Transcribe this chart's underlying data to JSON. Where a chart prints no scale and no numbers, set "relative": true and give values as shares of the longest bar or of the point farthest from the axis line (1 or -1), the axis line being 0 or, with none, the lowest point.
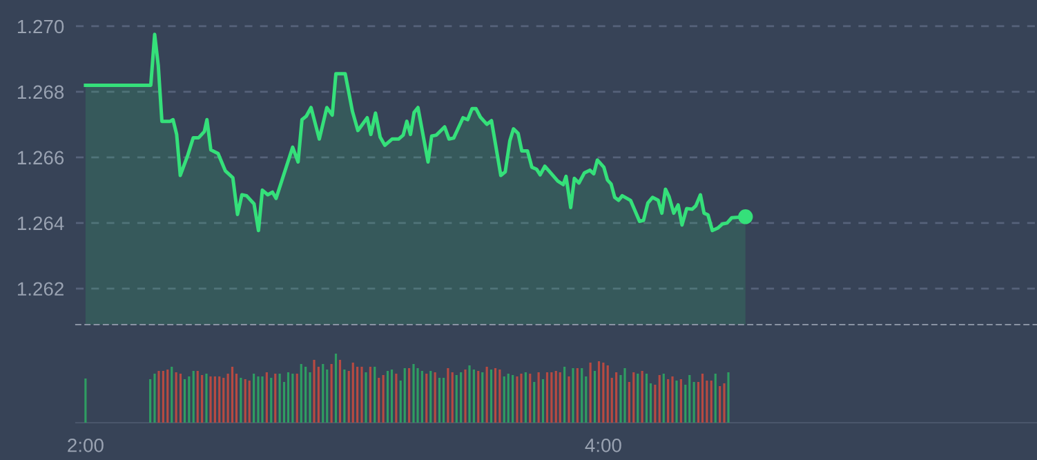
{
  "chart_data": [
    {
      "type": "area",
      "xlim": [
        1.963,
        5.675
      ],
      "ylim": [
        1.2609,
        1.2708
      ],
      "yticks": [
        1.262,
        1.264,
        1.266,
        1.268,
        {
          "value": 1.27,
          "label": "1.270"
        }
      ],
      "grid": "y",
      "tick_labels": "y",
      "series": [
        {
          "color": "#35e07a",
          "x": [
            2.0,
            2.252,
            2.267,
            2.281,
            2.295,
            2.327,
            2.338,
            2.352,
            2.366,
            2.395,
            2.416,
            2.437,
            2.459,
            2.469,
            2.484,
            2.512,
            2.54,
            2.569,
            2.587,
            2.604,
            2.622,
            2.651,
            2.668,
            2.683,
            2.704,
            2.722,
            2.736,
            2.8,
            2.821,
            2.836,
            2.853,
            2.871,
            2.903,
            2.932,
            2.953,
            2.967,
            3.003,
            3.031,
            3.052,
            3.088,
            3.102,
            3.12,
            3.138,
            3.156,
            3.184,
            3.209,
            3.227,
            3.241,
            3.255,
            3.269,
            3.284,
            3.323,
            3.337,
            3.355,
            3.387,
            3.404,
            3.422,
            3.458,
            3.476,
            3.493,
            3.508,
            3.525,
            3.55,
            3.568,
            3.604,
            3.621,
            3.639,
            3.653,
            3.671,
            3.685,
            3.707,
            3.724,
            3.742,
            3.756,
            3.774,
            3.824,
            3.845,
            3.856,
            3.874,
            3.888,
            3.906,
            3.927,
            3.948,
            3.963,
            3.977,
            4.002,
            4.016,
            4.03,
            4.044,
            4.059,
            4.073,
            4.105,
            4.14,
            4.155,
            4.172,
            4.19,
            4.212,
            4.226,
            4.24,
            4.254,
            4.272,
            4.289,
            4.304,
            4.322,
            4.343,
            4.357,
            4.375,
            4.389,
            4.404,
            4.421,
            4.443,
            4.46,
            4.478,
            4.496,
            4.549
          ],
          "values": [
            1.2682,
            1.2682,
            1.26975,
            1.2688,
            1.2671,
            1.2671,
            1.26715,
            1.2667,
            1.26545,
            1.26607,
            1.2666,
            1.2666,
            1.26679,
            1.26715,
            1.26623,
            1.26612,
            1.26559,
            1.26538,
            1.26426,
            1.26486,
            1.26483,
            1.26458,
            1.26377,
            1.265,
            1.26486,
            1.26494,
            1.26475,
            1.26631,
            1.26586,
            1.26715,
            1.26726,
            1.26752,
            1.26656,
            1.26752,
            1.26729,
            1.26855,
            1.26855,
            1.2674,
            1.26682,
            1.26721,
            1.2667,
            1.26735,
            1.26662,
            1.26637,
            1.26656,
            1.26656,
            1.26668,
            1.2671,
            1.2667,
            1.26737,
            1.26752,
            1.26586,
            1.26665,
            1.26668,
            1.26693,
            1.26656,
            1.26659,
            1.26721,
            1.26715,
            1.26749,
            1.26749,
            1.26723,
            1.26701,
            1.26712,
            1.26545,
            1.26556,
            1.26651,
            1.26687,
            1.26673,
            1.2662,
            1.2662,
            1.2657,
            1.26564,
            1.26547,
            1.26573,
            1.26528,
            1.26517,
            1.26542,
            1.26447,
            1.26536,
            1.26522,
            1.26553,
            1.26561,
            1.2655,
            1.26592,
            1.2657,
            1.26531,
            1.26519,
            1.26478,
            1.26469,
            1.26483,
            1.26469,
            1.26405,
            1.26408,
            1.26461,
            1.26478,
            1.26469,
            1.2643,
            1.26503,
            1.2648,
            1.2643,
            1.26455,
            1.26394,
            1.26444,
            1.26442,
            1.26452,
            1.26486,
            1.2643,
            1.26425,
            1.26377,
            1.26385,
            1.26397,
            1.264,
            1.26416,
            1.26419
          ]
        },
        {
          "type": "scatter",
          "marker": "circle",
          "color": "#35e07a",
          "x": [
            4.549
          ],
          "values": [
            1.26419
          ]
        }
      ]
    },
    {
      "type": "bar",
      "relative": true,
      "tick_labels": "x",
      "xlim": [
        1.963,
        5.675
      ],
      "xticks": [
        {
          "value": 2,
          "label": "2:00"
        },
        {
          "value": 4,
          "label": "4:00"
        }
      ],
      "x": [
        2.0,
        2.25,
        2.267,
        2.283,
        2.3,
        2.317,
        2.333,
        2.35,
        2.367,
        2.383,
        2.4,
        2.417,
        2.433,
        2.45,
        2.467,
        2.483,
        2.5,
        2.517,
        2.533,
        2.55,
        2.567,
        2.583,
        2.6,
        2.617,
        2.633,
        2.65,
        2.667,
        2.683,
        2.7,
        2.717,
        2.733,
        2.75,
        2.767,
        2.783,
        2.8,
        2.817,
        2.833,
        2.85,
        2.867,
        2.883,
        2.9,
        2.917,
        2.933,
        2.95,
        2.967,
        2.983,
        3.0,
        3.017,
        3.033,
        3.05,
        3.067,
        3.083,
        3.1,
        3.117,
        3.133,
        3.15,
        3.167,
        3.183,
        3.2,
        3.217,
        3.233,
        3.25,
        3.267,
        3.283,
        3.3,
        3.317,
        3.333,
        3.35,
        3.367,
        3.383,
        3.4,
        3.417,
        3.433,
        3.45,
        3.467,
        3.483,
        3.5,
        3.517,
        3.533,
        3.55,
        3.567,
        3.583,
        3.6,
        3.617,
        3.633,
        3.65,
        3.667,
        3.683,
        3.7,
        3.717,
        3.733,
        3.75,
        3.767,
        3.783,
        3.8,
        3.817,
        3.833,
        3.85,
        3.867,
        3.883,
        3.9,
        3.917,
        3.933,
        3.95,
        3.967,
        3.983,
        4.0,
        4.017,
        4.033,
        4.05,
        4.067,
        4.083,
        4.1,
        4.117,
        4.133,
        4.15,
        4.167,
        4.183,
        4.2,
        4.217,
        4.233,
        4.25,
        4.267,
        4.283,
        4.3,
        4.317,
        4.333,
        4.35,
        4.367,
        4.383,
        4.4,
        4.417,
        4.433,
        4.45,
        4.467,
        4.483
      ],
      "values": [
        0.64,
        0.63,
        0.71,
        0.75,
        0.75,
        0.77,
        0.81,
        0.73,
        0.71,
        0.63,
        0.67,
        0.75,
        0.75,
        0.69,
        0.71,
        0.67,
        0.67,
        0.67,
        0.65,
        0.71,
        0.81,
        0.71,
        0.65,
        0.63,
        0.61,
        0.71,
        0.67,
        0.67,
        0.73,
        0.65,
        0.71,
        0.71,
        0.59,
        0.73,
        0.71,
        0.71,
        0.85,
        0.81,
        0.73,
        0.91,
        0.81,
        0.85,
        0.77,
        0.85,
        1.0,
        0.91,
        0.77,
        0.75,
        0.87,
        0.81,
        0.81,
        0.73,
        0.81,
        0.81,
        0.65,
        0.69,
        0.75,
        0.77,
        0.71,
        0.61,
        0.79,
        0.79,
        0.85,
        0.79,
        0.75,
        0.71,
        0.75,
        0.73,
        0.65,
        0.65,
        0.79,
        0.73,
        0.69,
        0.73,
        0.77,
        0.83,
        0.77,
        0.75,
        0.73,
        0.81,
        0.77,
        0.79,
        0.77,
        0.67,
        0.71,
        0.69,
        0.67,
        0.71,
        0.73,
        0.71,
        0.59,
        0.73,
        0.63,
        0.73,
        0.73,
        0.75,
        0.73,
        0.81,
        0.67,
        0.79,
        0.79,
        0.79,
        0.67,
        0.87,
        0.75,
        0.89,
        0.87,
        0.83,
        0.65,
        0.73,
        0.69,
        0.79,
        0.59,
        0.73,
        0.71,
        0.75,
        0.71,
        0.57,
        0.55,
        0.69,
        0.71,
        0.63,
        0.67,
        0.61,
        0.63,
        0.55,
        0.69,
        0.59,
        0.59,
        0.71,
        0.61,
        0.61,
        0.71,
        0.53,
        0.57,
        0.73
      ],
      "colors": [
        "#2f9d62",
        "#2f9d62",
        "#2f9d62",
        "#b74a42",
        "#b74a42",
        "#b74a42",
        "#2f9d62",
        "#b74a42",
        "#b74a42",
        "#2f9d62",
        "#2f9d62",
        "#2f9d62",
        "#b74a42",
        "#b74a42",
        "#2f9d62",
        "#b74a42",
        "#b74a42",
        "#b74a42",
        "#b74a42",
        "#b74a42",
        "#b74a42",
        "#b74a42",
        "#2f9d62",
        "#b74a42",
        "#b74a42",
        "#2f9d62",
        "#2f9d62",
        "#2f9d62",
        "#b74a42",
        "#2f9d62",
        "#b74a42",
        "#2f9d62",
        "#2f9d62",
        "#2f9d62",
        "#2f9d62",
        "#b74a42",
        "#2f9d62",
        "#2f9d62",
        "#2f9d62",
        "#b74a42",
        "#b74a42",
        "#2f9d62",
        "#2f9d62",
        "#b74a42",
        "#2f9d62",
        "#b74a42",
        "#2f9d62",
        "#b74a42",
        "#b74a42",
        "#b74a42",
        "#b74a42",
        "#2f9d62",
        "#b74a42",
        "#2f9d62",
        "#b74a42",
        "#b74a42",
        "#2f9d62",
        "#2f9d62",
        "#b74a42",
        "#2f9d62",
        "#2f9d62",
        "#b74a42",
        "#2f9d62",
        "#2f9d62",
        "#2f9d62",
        "#b74a42",
        "#2f9d62",
        "#b74a42",
        "#2f9d62",
        "#2f9d62",
        "#b74a42",
        "#b74a42",
        "#2f9d62",
        "#2f9d62",
        "#b74a42",
        "#2f9d62",
        "#2f9d62",
        "#b74a42",
        "#2f9d62",
        "#b74a42",
        "#2f9d62",
        "#b74a42",
        "#b74a42",
        "#2f9d62",
        "#2f9d62",
        "#2f9d62",
        "#b74a42",
        "#b74a42",
        "#2f9d62",
        "#b74a42",
        "#2f9d62",
        "#b74a42",
        "#2f9d62",
        "#b74a42",
        "#b74a42",
        "#b74a42",
        "#b74a42",
        "#2f9d62",
        "#b74a42",
        "#2f9d62",
        "#b74a42",
        "#2f9d62",
        "#2f9d62",
        "#b74a42",
        "#2f9d62",
        "#b74a42",
        "#b74a42",
        "#b74a42",
        "#b74a42",
        "#b74a42",
        "#2f9d62",
        "#2f9d62",
        "#b74a42",
        "#b74a42",
        "#2f9d62",
        "#b74a42",
        "#2f9d62",
        "#2f9d62",
        "#b74a42",
        "#b74a42",
        "#2f9d62",
        "#b74a42",
        "#b74a42",
        "#2f9d62",
        "#b74a42",
        "#2f9d62",
        "#2f9d62",
        "#2f9d62",
        "#b74a42",
        "#b74a42",
        "#b74a42",
        "#b74a42",
        "#2f9d62",
        "#b74a42",
        "#b74a42",
        "#2f9d62"
      ]
    }
  ]
}
